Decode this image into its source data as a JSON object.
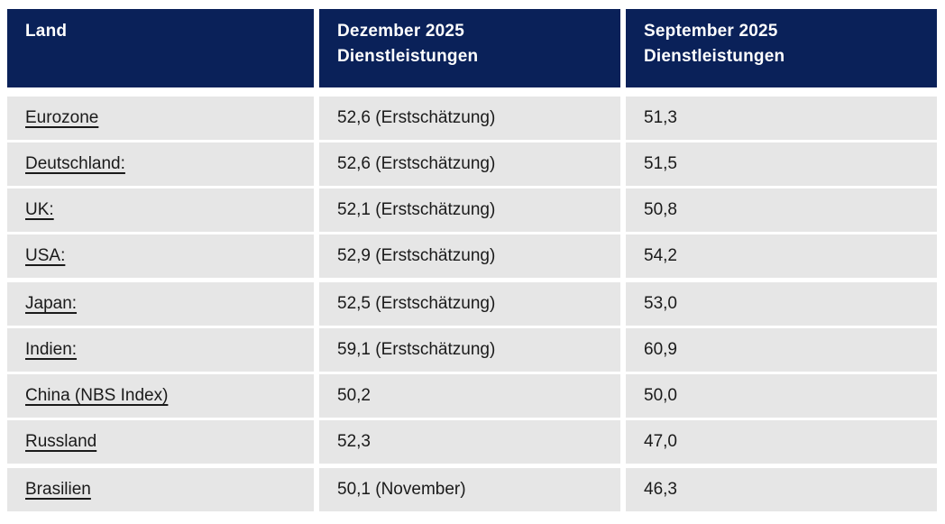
{
  "colors": {
    "header_bg": "#0a2159",
    "header_text": "#ffffff",
    "row_bg": "#e6e6e6",
    "body_text": "#1a1a1a"
  },
  "table": {
    "header": {
      "land": "Land",
      "dezember": "Dezember 2025\nDienstleistungen",
      "september": "September 2025\nDienstleistungen"
    },
    "rows": [
      {
        "land": "Eurozone",
        "dezember": "52,6 (Erstschätzung)",
        "september": "51,3"
      },
      {
        "land": "Deutschland:",
        "dezember": "52,6 (Erstschätzung)",
        "september": "51,5"
      },
      {
        "land": "UK:",
        "dezember": "52,1 (Erstschätzung)",
        "september": "50,8"
      },
      {
        "land": "USA:",
        "dezember": "52,9 (Erstschätzung)",
        "september": "54,2"
      },
      {
        "land": "Japan:",
        "dezember": "52,5 (Erstschätzung)",
        "september": "53,0"
      },
      {
        "land": "Indien:",
        "dezember": "59,1 (Erstschätzung)",
        "september": "60,9"
      },
      {
        "land": "China (NBS Index)",
        "dezember": "50,2",
        "september": "50,0"
      },
      {
        "land": "Russland",
        "dezember": "52,3",
        "september": "47,0"
      },
      {
        "land": "Brasilien",
        "dezember": "50,1 (November)",
        "september": "46,3"
      }
    ]
  },
  "chart_data": {
    "type": "table",
    "title": "",
    "categories": [
      "Eurozone",
      "Deutschland",
      "UK",
      "USA",
      "Japan",
      "Indien",
      "China (NBS Index)",
      "Russland",
      "Brasilien"
    ],
    "series": [
      {
        "name": "Dezember 2025 Dienstleistungen",
        "values": [
          52.6,
          52.6,
          52.1,
          52.9,
          52.5,
          59.1,
          50.2,
          52.3,
          50.1
        ],
        "notes": [
          "Erstschätzung",
          "Erstschätzung",
          "Erstschätzung",
          "Erstschätzung",
          "Erstschätzung",
          "Erstschätzung",
          "",
          "",
          "November"
        ]
      },
      {
        "name": "September 2025 Dienstleistungen",
        "values": [
          51.3,
          51.5,
          50.8,
          54.2,
          53.0,
          60.9,
          50.0,
          47.0,
          46.3
        ]
      }
    ]
  }
}
